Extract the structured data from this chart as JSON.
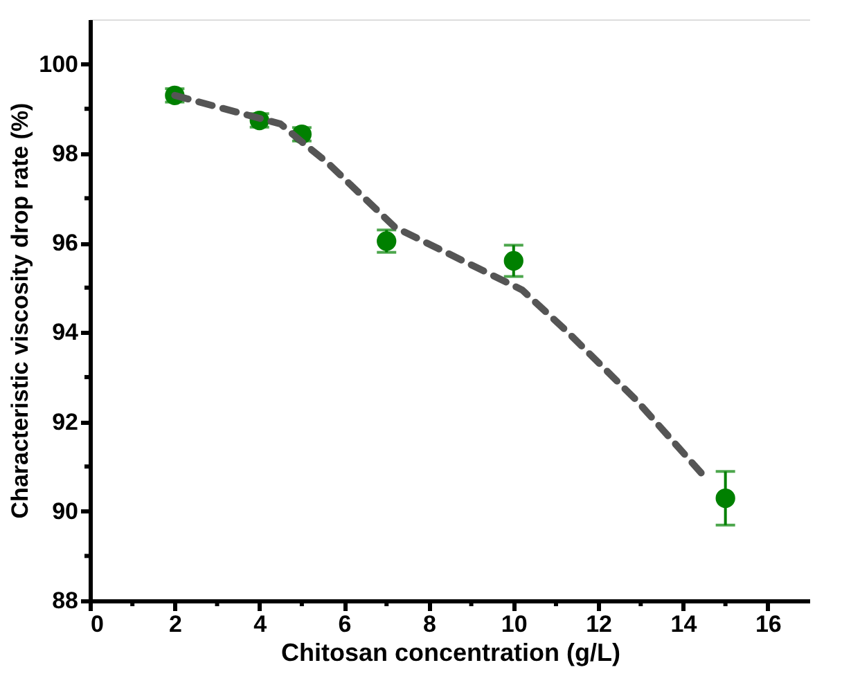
{
  "chart_data": {
    "type": "scatter",
    "xlabel": "Chitosan concentration (g/L)",
    "ylabel": "Characteristic viscosity drop rate (%)",
    "x": [
      2,
      4,
      5,
      7,
      10,
      15
    ],
    "series": [
      {
        "color": "#008000",
        "values": [
          99.3,
          98.74,
          98.43,
          96.04,
          95.6,
          90.29
        ],
        "errors": [
          0.15,
          0.15,
          0.15,
          0.25,
          0.35,
          0.6
        ],
        "marker": "circle"
      },
      {
        "type": "line",
        "color": "#555555",
        "line_style": "dashed",
        "marker": "none",
        "x": [
          2,
          4.5,
          5,
          5.6,
          7.2,
          10.2,
          11.25,
          12.9,
          14.5
        ],
        "values": [
          99.3,
          98.66,
          98.26,
          97.8,
          96.35,
          94.95,
          94.03,
          92.48,
          90.78
        ]
      }
    ],
    "xlim": [
      0,
      17
    ],
    "ylim": [
      88,
      101
    ],
    "xticks": [
      0,
      {
        "value": 1,
        "label": null
      },
      2,
      {
        "value": 3,
        "label": null
      },
      4,
      {
        "value": 5,
        "label": null
      },
      6,
      {
        "value": 7,
        "label": null
      },
      8,
      {
        "value": 9,
        "label": null
      },
      10,
      {
        "value": 11,
        "label": null
      },
      12,
      {
        "value": 13,
        "label": null
      },
      14,
      {
        "value": 15,
        "label": null
      },
      16
    ],
    "yticks": [
      88,
      {
        "value": 89,
        "label": null
      },
      90,
      {
        "value": 91,
        "label": null
      },
      92,
      {
        "value": 93,
        "label": null
      },
      94,
      {
        "value": 95,
        "label": null
      },
      96,
      {
        "value": 97,
        "label": null
      },
      98,
      {
        "value": 99,
        "label": null
      },
      100
    ],
    "grid": false
  }
}
